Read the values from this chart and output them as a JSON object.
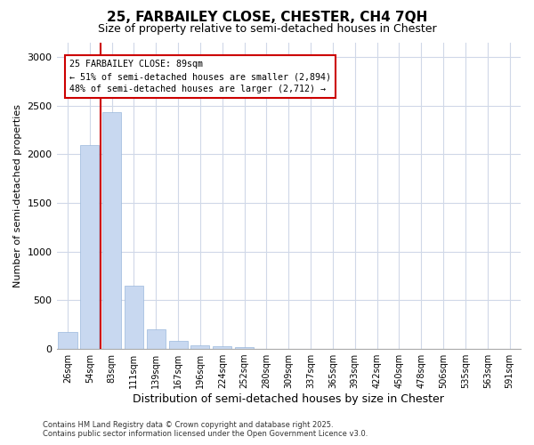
{
  "title_line1": "25, FARBAILEY CLOSE, CHESTER, CH4 7QH",
  "title_line2": "Size of property relative to semi-detached houses in Chester",
  "xlabel": "Distribution of semi-detached houses by size in Chester",
  "ylabel": "Number of semi-detached properties",
  "categories": [
    "26sqm",
    "54sqm",
    "83sqm",
    "111sqm",
    "139sqm",
    "167sqm",
    "196sqm",
    "224sqm",
    "252sqm",
    "280sqm",
    "309sqm",
    "337sqm",
    "365sqm",
    "393sqm",
    "422sqm",
    "450sqm",
    "478sqm",
    "506sqm",
    "535sqm",
    "563sqm",
    "591sqm"
  ],
  "values": [
    175,
    2090,
    2430,
    650,
    200,
    80,
    35,
    25,
    20,
    0,
    0,
    0,
    0,
    0,
    0,
    0,
    0,
    0,
    0,
    0,
    0
  ],
  "bar_color": "#c8d8f0",
  "bar_edge_color": "#9ab8dc",
  "vline_color": "#cc0000",
  "vline_pos": 1.5,
  "annotation_text_line1": "25 FARBAILEY CLOSE: 89sqm",
  "annotation_text_line2": "← 51% of semi-detached houses are smaller (2,894)",
  "annotation_text_line3": "48% of semi-detached houses are larger (2,712) →",
  "ylim": [
    0,
    3150
  ],
  "yticks": [
    0,
    500,
    1000,
    1500,
    2000,
    2500,
    3000
  ],
  "grid_color": "#d0d8e8",
  "footer_line1": "Contains HM Land Registry data © Crown copyright and database right 2025.",
  "footer_line2": "Contains public sector information licensed under the Open Government Licence v3.0.",
  "bg_color": "#ffffff",
  "title1_fontsize": 11,
  "title2_fontsize": 9,
  "xlabel_fontsize": 9,
  "ylabel_fontsize": 8,
  "tick_fontsize": 7,
  "footer_fontsize": 6
}
